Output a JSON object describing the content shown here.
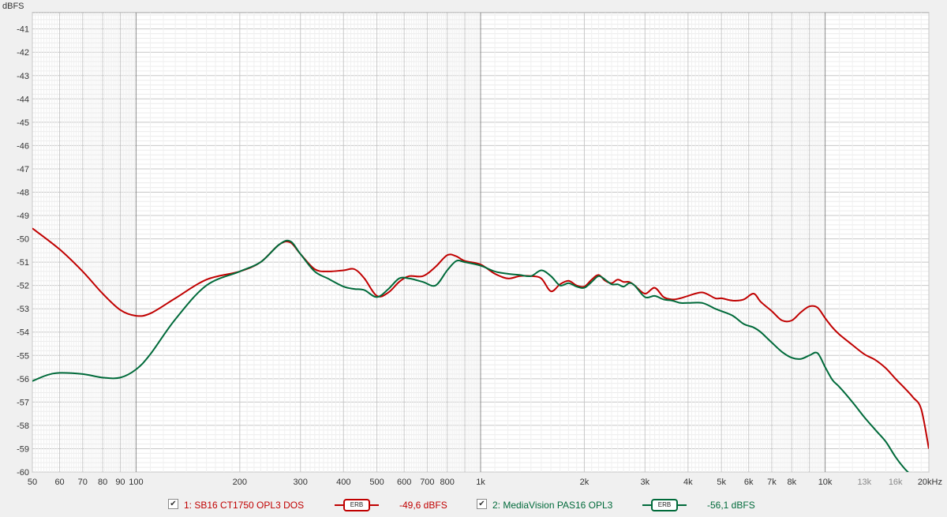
{
  "chart_data": {
    "type": "line",
    "ylabel": "dBFS",
    "xlabel": "",
    "xscale": "log",
    "xlim": [
      50,
      20000
    ],
    "ylim": [
      -60,
      -40.3
    ],
    "grid": true,
    "x_ticks": [
      50,
      60,
      70,
      80,
      90,
      100,
      200,
      300,
      400,
      500,
      600,
      700,
      800,
      1000,
      2000,
      3000,
      4000,
      5000,
      6000,
      7000,
      8000,
      10000,
      13000,
      16000,
      20000
    ],
    "x_tick_labels": [
      "50",
      "60",
      "70",
      "80",
      "90",
      "100",
      "200",
      "300",
      "400",
      "500",
      "600",
      "700",
      "800",
      "1k",
      "2k",
      "3k",
      "4k",
      "5k",
      "6k",
      "7k",
      "8k",
      "10k",
      "13k",
      "16k",
      "20kHz"
    ],
    "y_ticks": [
      -41,
      -42,
      -43,
      -44,
      -45,
      -46,
      -47,
      -48,
      -49,
      -50,
      -51,
      -52,
      -53,
      -54,
      -55,
      -56,
      -57,
      -58,
      -59,
      -60
    ],
    "y_tick_labels": [
      "-41",
      "-42",
      "-43",
      "-44",
      "-45",
      "-46",
      "-47",
      "-48",
      "-49",
      "-50",
      "-51",
      "-52",
      "-53",
      "-54",
      "-55",
      "-56",
      "-57",
      "-58",
      "-59",
      "-60"
    ],
    "series": [
      {
        "name": "1: SB16 CT1750 OPL3 DOS",
        "color": "#c00000",
        "smoothing": "ERB",
        "level": "-49,6 dBFS",
        "x": [
          50,
          60,
          70,
          80,
          90,
          100,
          110,
          130,
          160,
          200,
          230,
          260,
          280,
          300,
          330,
          360,
          400,
          430,
          460,
          500,
          540,
          580,
          620,
          680,
          740,
          800,
          850,
          900,
          1000,
          1100,
          1200,
          1300,
          1400,
          1500,
          1600,
          1700,
          1800,
          1900,
          2000,
          2100,
          2200,
          2300,
          2400,
          2500,
          2600,
          2700,
          2800,
          3000,
          3200,
          3400,
          3600,
          3800,
          4000,
          4400,
          4800,
          5000,
          5400,
          5800,
          6200,
          6500,
          7000,
          7500,
          8000,
          8500,
          9000,
          9500,
          10000,
          10500,
          11000,
          12000,
          13000,
          14000,
          15000,
          16000,
          17000,
          18000,
          19000,
          20000
        ],
        "values": [
          -49.55,
          -50.45,
          -51.4,
          -52.35,
          -53.05,
          -53.3,
          -53.2,
          -52.55,
          -51.75,
          -51.4,
          -51.0,
          -50.25,
          -50.15,
          -50.65,
          -51.3,
          -51.4,
          -51.35,
          -51.3,
          -51.7,
          -52.45,
          -52.3,
          -51.85,
          -51.6,
          -51.6,
          -51.2,
          -50.7,
          -50.75,
          -50.95,
          -51.1,
          -51.5,
          -51.7,
          -51.6,
          -51.6,
          -51.7,
          -52.25,
          -51.95,
          -51.8,
          -52.0,
          -52.05,
          -51.75,
          -51.55,
          -51.8,
          -51.9,
          -51.75,
          -51.85,
          -51.85,
          -52.0,
          -52.35,
          -52.1,
          -52.5,
          -52.6,
          -52.55,
          -52.45,
          -52.3,
          -52.55,
          -52.55,
          -52.65,
          -52.6,
          -52.35,
          -52.7,
          -53.1,
          -53.5,
          -53.5,
          -53.15,
          -52.9,
          -52.95,
          -53.4,
          -53.8,
          -54.1,
          -54.55,
          -54.95,
          -55.2,
          -55.55,
          -56.0,
          -56.4,
          -56.8,
          -57.3,
          -59.0
        ]
      },
      {
        "name": "2: MediaVision PAS16 OPL3",
        "color": "#006a3a",
        "smoothing": "ERB",
        "level": "-56,1 dBFS",
        "x": [
          50,
          55,
          60,
          70,
          80,
          90,
          100,
          110,
          130,
          160,
          200,
          230,
          260,
          280,
          300,
          330,
          360,
          400,
          430,
          460,
          500,
          540,
          580,
          620,
          680,
          740,
          800,
          850,
          900,
          1000,
          1100,
          1200,
          1300,
          1400,
          1500,
          1600,
          1700,
          1800,
          1900,
          2000,
          2100,
          2200,
          2300,
          2400,
          2500,
          2600,
          2700,
          2800,
          3000,
          3200,
          3400,
          3600,
          3800,
          4000,
          4400,
          4800,
          5000,
          5400,
          5800,
          6200,
          6500,
          7000,
          7500,
          8000,
          8500,
          9000,
          9500,
          10000,
          10500,
          11000,
          12000,
          13000,
          14000,
          15000,
          16000,
          17000,
          18000
        ],
        "values": [
          -56.1,
          -55.85,
          -55.75,
          -55.8,
          -55.95,
          -55.95,
          -55.6,
          -54.95,
          -53.45,
          -52.0,
          -51.4,
          -51.0,
          -50.25,
          -50.1,
          -50.65,
          -51.4,
          -51.7,
          -52.05,
          -52.15,
          -52.2,
          -52.5,
          -52.15,
          -51.7,
          -51.7,
          -51.85,
          -52.0,
          -51.35,
          -50.95,
          -51.0,
          -51.15,
          -51.4,
          -51.5,
          -51.55,
          -51.6,
          -51.35,
          -51.6,
          -52.0,
          -51.9,
          -52.05,
          -52.1,
          -51.85,
          -51.6,
          -51.75,
          -51.95,
          -51.95,
          -52.05,
          -51.9,
          -52.0,
          -52.5,
          -52.45,
          -52.6,
          -52.65,
          -52.75,
          -52.75,
          -52.75,
          -53.0,
          -53.1,
          -53.3,
          -53.65,
          -53.8,
          -54.0,
          -54.45,
          -54.85,
          -55.1,
          -55.15,
          -55.0,
          -54.9,
          -55.5,
          -56.05,
          -56.35,
          -57.0,
          -57.65,
          -58.2,
          -58.7,
          -59.35,
          -59.85,
          -60.3
        ]
      }
    ]
  }
}
